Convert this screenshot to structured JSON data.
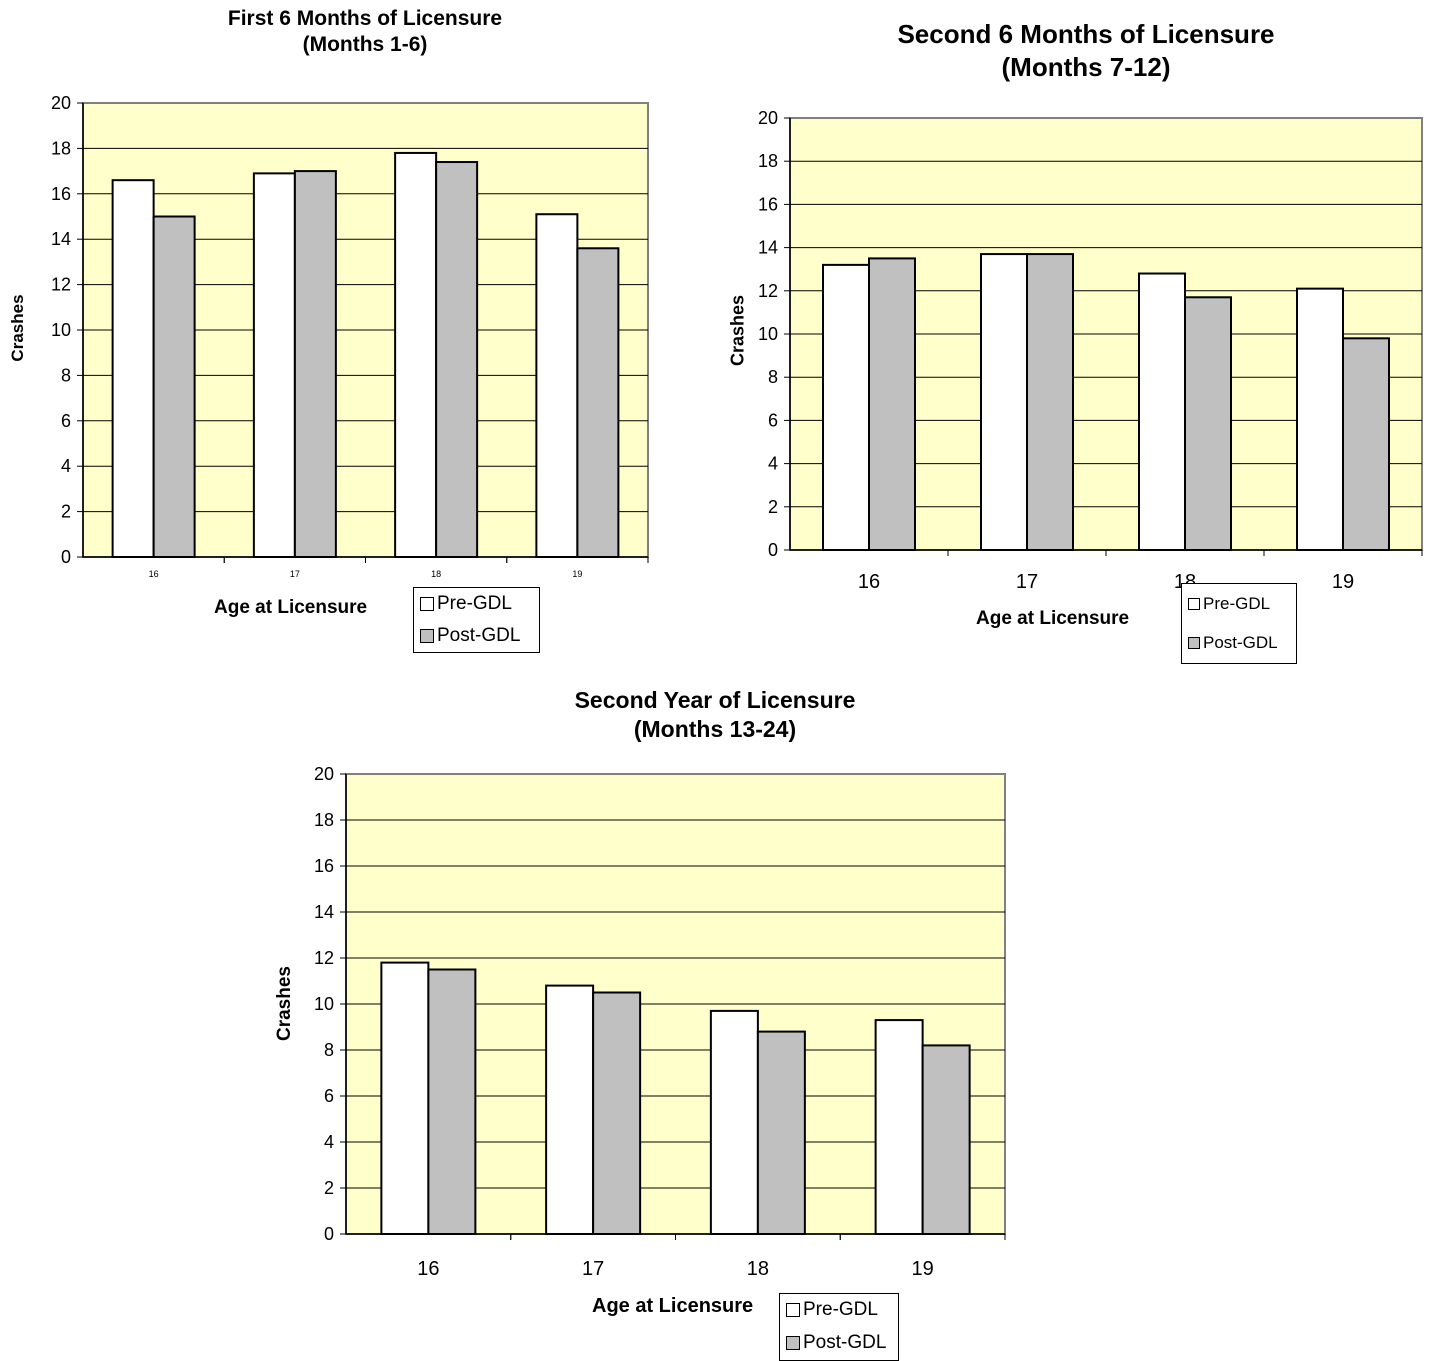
{
  "chart_data": [
    {
      "type": "bar",
      "title": "First 6 Months of Licensure",
      "subtitle": "(Months 1-6)",
      "xlabel": "Age at Licensure",
      "ylabel": "Crashes",
      "categories": [
        "16",
        "17",
        "18",
        "19"
      ],
      "ylim": [
        0,
        20
      ],
      "yticks": [
        "0",
        "2",
        "4",
        "6",
        "8",
        "10",
        "12",
        "14",
        "16",
        "18",
        "20"
      ],
      "grid": true,
      "legend_position": "bottom-right",
      "series": [
        {
          "name": "Pre-GDL",
          "values": [
            16.6,
            16.9,
            17.8,
            15.1
          ]
        },
        {
          "name": "Post-GDL",
          "values": [
            15.0,
            17.0,
            17.4,
            13.6
          ]
        }
      ]
    },
    {
      "type": "bar",
      "title": "Second 6 Months of Licensure",
      "subtitle": "(Months 7-12)",
      "xlabel": "Age at Licensure",
      "ylabel": "Crashes",
      "categories": [
        "16",
        "17",
        "18",
        "19"
      ],
      "ylim": [
        0,
        20
      ],
      "yticks": [
        "0",
        "2",
        "4",
        "6",
        "8",
        "10",
        "12",
        "14",
        "16",
        "18",
        "20"
      ],
      "grid": true,
      "legend_position": "bottom-right",
      "series": [
        {
          "name": "Pre-GDL",
          "values": [
            13.2,
            13.7,
            12.8,
            12.1
          ]
        },
        {
          "name": "Post-GDL",
          "values": [
            13.5,
            13.7,
            11.7,
            9.8
          ]
        }
      ]
    },
    {
      "type": "bar",
      "title": "Second Year of Licensure",
      "subtitle": "(Months 13-24)",
      "xlabel": "Age at Licensure",
      "ylabel": "Crashes",
      "categories": [
        "16",
        "17",
        "18",
        "19"
      ],
      "ylim": [
        0,
        20
      ],
      "yticks": [
        "0",
        "2",
        "4",
        "6",
        "8",
        "10",
        "12",
        "14",
        "16",
        "18",
        "20"
      ],
      "grid": true,
      "legend_position": "bottom-right",
      "series": [
        {
          "name": "Pre-GDL",
          "values": [
            11.8,
            10.8,
            9.7,
            9.3
          ]
        },
        {
          "name": "Post-GDL",
          "values": [
            11.5,
            10.5,
            8.8,
            8.2
          ]
        }
      ]
    }
  ],
  "colors": {
    "plot_background": "#FFFFCC",
    "pre_gdl_fill": "#FFFFFF",
    "post_gdl_fill": "#C0C0C0",
    "outline": "#000000",
    "plot_border": "#808080"
  }
}
